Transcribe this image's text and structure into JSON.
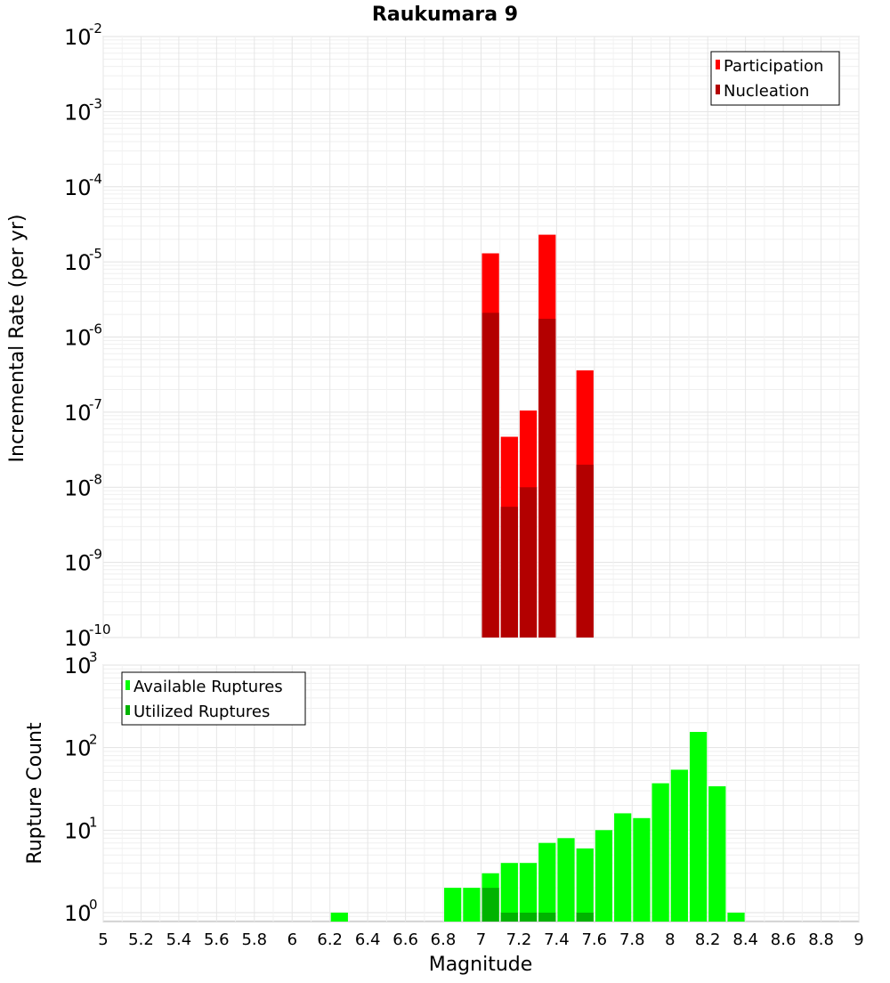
{
  "chart_data": [
    {
      "type": "bar",
      "title": "Raukumara 9",
      "ylabel": "Incremental Rate (per yr)",
      "yscale": "log",
      "ylim": [
        1e-10,
        0.01
      ],
      "xlim": [
        5,
        9
      ],
      "y_tick_base": "10",
      "y_tick_exponents": [
        "-10",
        "-9",
        "-8",
        "-7",
        "-6",
        "-5",
        "-4",
        "-3",
        "-2"
      ],
      "legend_position": "top-right",
      "grid": true,
      "series": [
        {
          "name": "Participation",
          "color": "#ff0000",
          "x": [
            7.05,
            7.15,
            7.25,
            7.35,
            7.55
          ],
          "values": [
            1.3e-05,
            4.7e-08,
            1.05e-07,
            2.3e-05,
            3.6e-07
          ]
        },
        {
          "name": "Nucleation",
          "color": "#b30000",
          "x": [
            7.05,
            7.15,
            7.25,
            7.35,
            7.55
          ],
          "values": [
            2.1e-06,
            5.5e-09,
            1e-08,
            1.75e-06,
            2e-08
          ]
        }
      ]
    },
    {
      "type": "bar",
      "ylabel": "Rupture Count",
      "xlabel": "Magnitude",
      "yscale": "log",
      "ylim": [
        0.78,
        1000
      ],
      "xlim": [
        5,
        9
      ],
      "x_ticks": [
        "5",
        "5.2",
        "5.4",
        "5.6",
        "5.8",
        "6",
        "6.2",
        "6.4",
        "6.6",
        "6.8",
        "7",
        "7.2",
        "7.4",
        "7.6",
        "7.8",
        "8",
        "8.2",
        "8.4",
        "8.6",
        "8.8",
        "9"
      ],
      "y_tick_base": "10",
      "y_tick_exponents": [
        "0",
        "1",
        "2",
        "3"
      ],
      "legend_position": "top-left",
      "grid": true,
      "series": [
        {
          "name": "Available Ruptures",
          "color": "#00ff00",
          "x": [
            6.25,
            6.85,
            6.95,
            7.05,
            7.15,
            7.25,
            7.35,
            7.45,
            7.55,
            7.65,
            7.75,
            7.85,
            7.95,
            8.05,
            8.15,
            8.25,
            8.35
          ],
          "values": [
            1,
            2,
            2,
            3,
            4,
            4,
            7,
            8,
            6,
            10,
            16,
            14,
            37,
            54,
            155,
            34,
            1
          ]
        },
        {
          "name": "Utilized Ruptures",
          "color": "#00b300",
          "x": [
            7.05,
            7.15,
            7.25,
            7.35,
            7.55
          ],
          "values": [
            2,
            1,
            1,
            1,
            1
          ]
        }
      ]
    }
  ]
}
